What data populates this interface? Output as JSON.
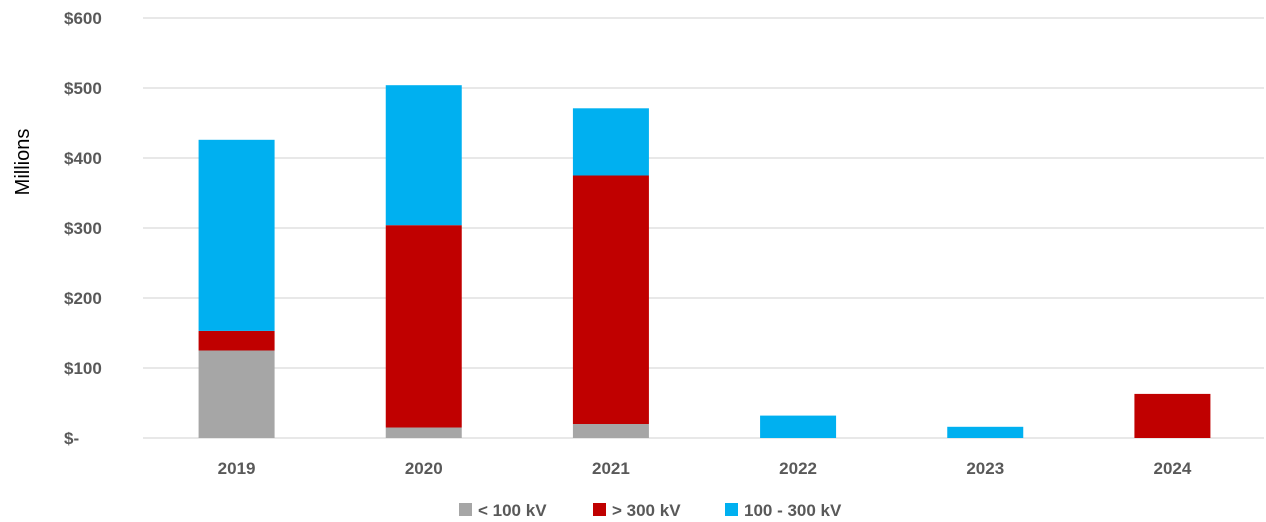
{
  "chart_data": {
    "type": "bar",
    "stacked": true,
    "categories": [
      "2019",
      "2020",
      "2021",
      "2022",
      "2023",
      "2024"
    ],
    "series": [
      {
        "name": "< 100 kV",
        "color": "#a6a6a6",
        "values": [
          125,
          15,
          20,
          0,
          0,
          0
        ]
      },
      {
        "name": "> 300 kV",
        "color": "#c00000",
        "values": [
          28,
          289,
          355,
          0,
          0,
          63
        ]
      },
      {
        "name": "100 - 300 kV",
        "color": "#00b0f0",
        "values": [
          273,
          200,
          96,
          32,
          16,
          0
        ]
      }
    ],
    "ylabel": "Millions",
    "xlabel": "",
    "ylim": [
      0,
      600
    ],
    "yticks": [
      0,
      100,
      200,
      300,
      400,
      500,
      600
    ],
    "ytick_labels": [
      "$-",
      "$100",
      "$200",
      "$300",
      "$400",
      "$500",
      "$600"
    ],
    "grid": true,
    "legend_position": "bottom"
  }
}
